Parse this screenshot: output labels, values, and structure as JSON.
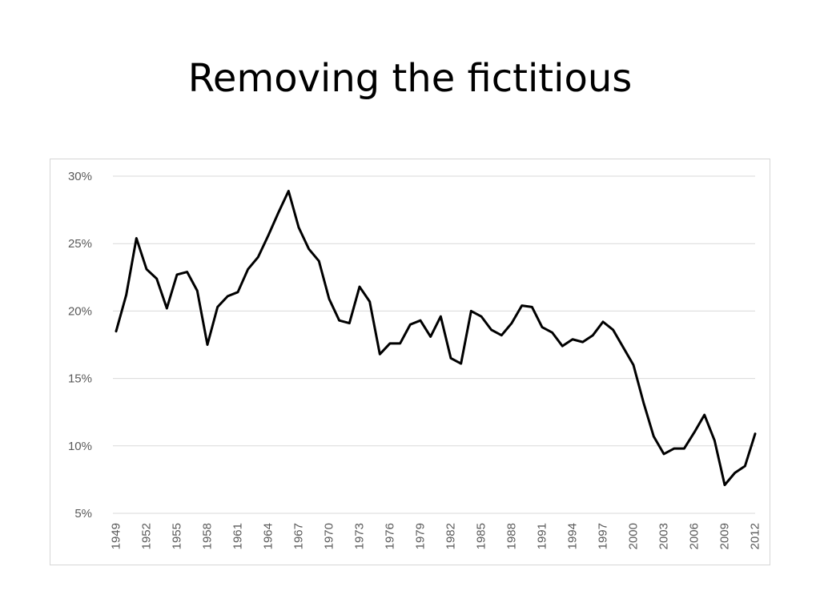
{
  "slide": {
    "title": "Removing the fictitious"
  },
  "chart_data": {
    "type": "line",
    "title": "",
    "xlabel": "",
    "ylabel": "",
    "ylim": [
      5,
      30
    ],
    "y_tick_values": [
      5,
      10,
      15,
      20,
      25,
      30
    ],
    "y_tick_labels": [
      "5%",
      "10%",
      "15%",
      "20%",
      "25%",
      "30%"
    ],
    "x_tick_labels": [
      "1949",
      "1952",
      "1955",
      "1958",
      "1961",
      "1964",
      "1967",
      "1970",
      "1973",
      "1976",
      "1979",
      "1982",
      "1985",
      "1988",
      "1991",
      "1994",
      "1997",
      "2000",
      "2003",
      "2006",
      "2009",
      "2012"
    ],
    "grid": "horizontal",
    "line_color": "#000000",
    "gridline_color": "#d9d9d9",
    "x": [
      1949,
      1950,
      1951,
      1952,
      1953,
      1954,
      1955,
      1956,
      1957,
      1958,
      1959,
      1960,
      1961,
      1962,
      1963,
      1964,
      1965,
      1966,
      1967,
      1968,
      1969,
      1970,
      1971,
      1972,
      1973,
      1974,
      1975,
      1976,
      1977,
      1978,
      1979,
      1980,
      1981,
      1982,
      1983,
      1984,
      1985,
      1986,
      1987,
      1988,
      1989,
      1990,
      1991,
      1992,
      1993,
      1994,
      1995,
      1996,
      1997,
      1998,
      1999,
      2000,
      2001,
      2002,
      2003,
      2004,
      2005,
      2006,
      2007,
      2008,
      2009,
      2010,
      2011,
      2012
    ],
    "series": [
      {
        "values": [
          18.5,
          21.2,
          25.4,
          23.1,
          22.4,
          20.2,
          22.7,
          22.9,
          21.5,
          17.5,
          20.3,
          21.1,
          21.4,
          23.1,
          24.0,
          25.6,
          27.3,
          28.9,
          26.2,
          24.6,
          23.7,
          20.9,
          19.3,
          19.1,
          21.8,
          20.7,
          16.8,
          17.6,
          17.6,
          19.0,
          19.3,
          18.1,
          19.6,
          16.5,
          16.1,
          20.0,
          19.6,
          18.6,
          18.2,
          19.1,
          20.4,
          20.3,
          18.8,
          18.4,
          17.4,
          17.9,
          17.7,
          18.2,
          19.2,
          18.6,
          17.3,
          16.0,
          13.2,
          10.7,
          9.4,
          9.8,
          9.8,
          11.0,
          12.3,
          10.4,
          7.1,
          8.0,
          8.5,
          10.9
        ]
      }
    ]
  }
}
